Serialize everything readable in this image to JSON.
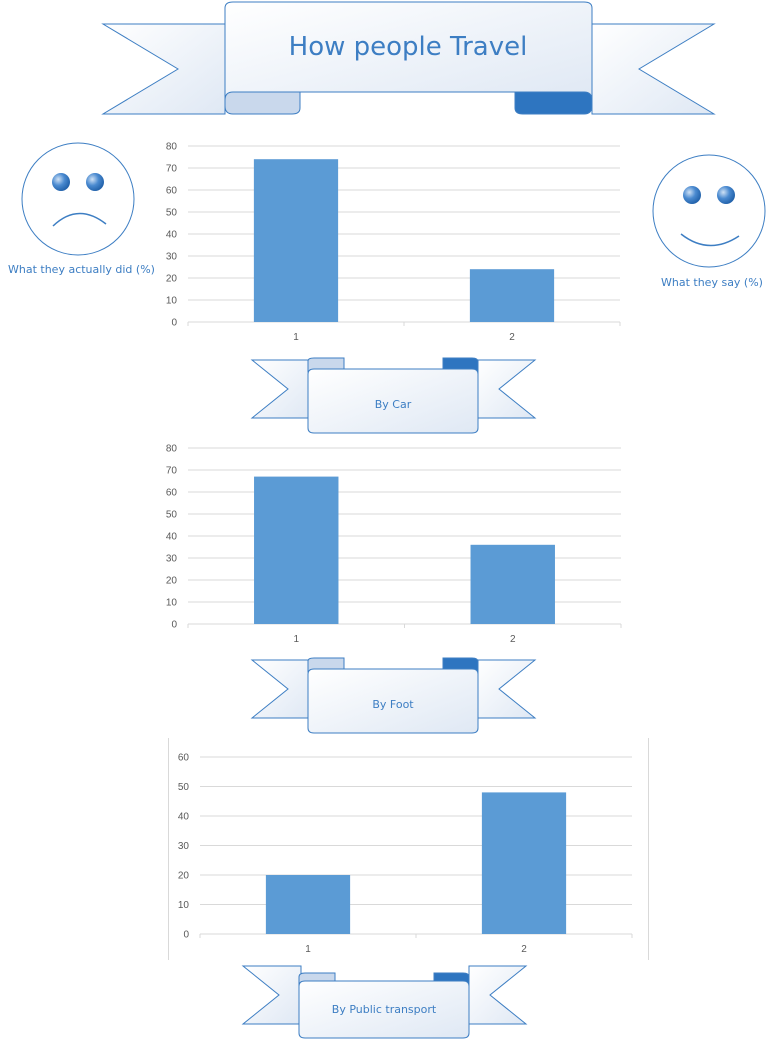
{
  "title": "How people Travel",
  "faces": {
    "sad_caption": "What they actually did (%)",
    "happy_caption": "What they say (%)"
  },
  "colors": {
    "bar": "#5b9bd5",
    "accent": "#3d7ec3",
    "ribbon_dark": "#2e75c0"
  },
  "chart_data": [
    {
      "type": "bar",
      "label": "By Car",
      "categories": [
        "1",
        "2"
      ],
      "values": [
        74,
        24
      ],
      "ylim": [
        0,
        80
      ],
      "yticks": [
        0,
        10,
        20,
        30,
        40,
        50,
        60,
        70,
        80
      ],
      "grid": true
    },
    {
      "type": "bar",
      "label": "By Foot",
      "categories": [
        "1",
        "2"
      ],
      "values": [
        67,
        36
      ],
      "ylim": [
        0,
        80
      ],
      "yticks": [
        0,
        10,
        20,
        30,
        40,
        50,
        60,
        70,
        80
      ],
      "grid": true
    },
    {
      "type": "bar",
      "label": "By Public transport",
      "categories": [
        "1",
        "2"
      ],
      "values": [
        20,
        48
      ],
      "ylim": [
        0,
        60
      ],
      "yticks": [
        0,
        10,
        20,
        30,
        40,
        50,
        60
      ],
      "grid": true
    }
  ]
}
